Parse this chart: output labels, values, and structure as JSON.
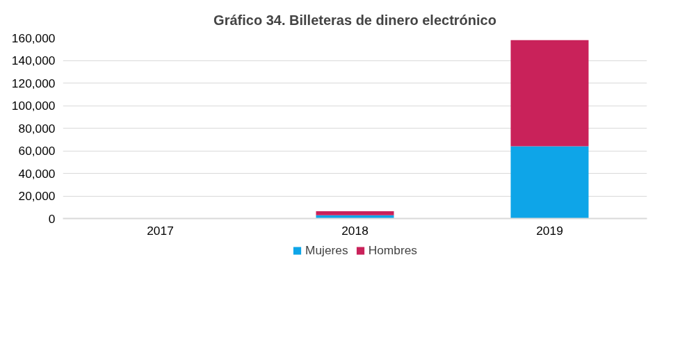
{
  "chart_data": {
    "type": "bar",
    "title": "Gráfico 34. Billeteras de dinero electrónico",
    "categories": [
      "2017",
      "2018",
      "2019"
    ],
    "series": [
      {
        "name": "Mujeres",
        "color": "#0ea5e8",
        "values": [
          0,
          3000,
          64000
        ]
      },
      {
        "name": "Hombres",
        "color": "#c9225a",
        "values": [
          0,
          3500,
          94000
        ]
      }
    ],
    "stacked": true,
    "ylim": [
      0,
      160000
    ],
    "yticks": [
      {
        "value": 0,
        "label": "0"
      },
      {
        "value": 20000,
        "label": "20,000"
      },
      {
        "value": 40000,
        "label": "40,000"
      },
      {
        "value": 60000,
        "label": "60,000"
      },
      {
        "value": 80000,
        "label": "80,000"
      },
      {
        "value": 100000,
        "label": "100,000"
      },
      {
        "value": 120000,
        "label": "120,000"
      },
      {
        "value": 140000,
        "label": "140,000"
      },
      {
        "value": 160000,
        "label": "160,000"
      }
    ],
    "grid": "y",
    "legend": "bottom"
  }
}
